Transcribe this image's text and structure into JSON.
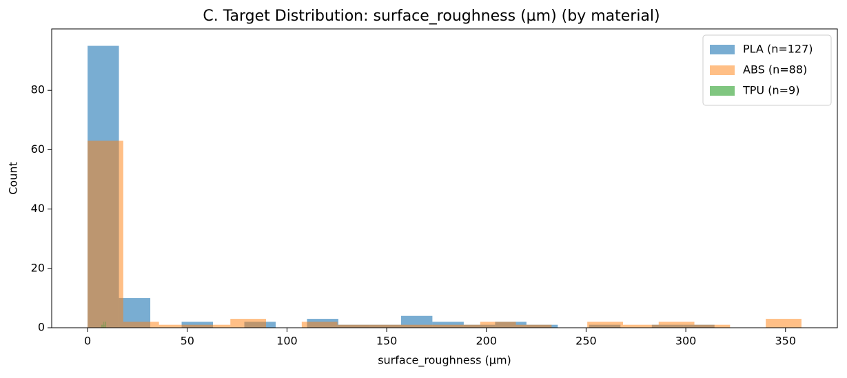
{
  "chart_data": {
    "type": "histogram",
    "title": "C.  Target Distribution: surface_roughness (µm) (by material)",
    "x_label": "surface_roughness (µm)",
    "y_label": "Count",
    "xlim": [
      -18,
      376
    ],
    "ylim": [
      0,
      100.7
    ],
    "xticks": [
      0,
      50,
      100,
      150,
      200,
      250,
      300,
      350
    ],
    "yticks": [
      0,
      20,
      40,
      60,
      80
    ],
    "legend": "upper right",
    "series": [
      {
        "name": "PLA (n=127)",
        "color": "#1f77b4",
        "bins": [
          0,
          15.72,
          31.44,
          47.16,
          62.88,
          78.6,
          94.32,
          110.04,
          125.76,
          141.48,
          157.2,
          172.92,
          188.64,
          204.36,
          220.08,
          235.8,
          251.52,
          267.24,
          282.96,
          298.68,
          314.4
        ],
        "values": [
          95,
          10,
          0,
          2,
          0,
          2,
          0,
          3,
          1,
          1,
          4,
          2,
          1,
          2,
          1,
          0,
          1,
          0,
          1,
          1
        ]
      },
      {
        "name": "ABS (n=88)",
        "color": "#ff7f0e",
        "bins": [
          0,
          17.9,
          35.8,
          53.7,
          71.6,
          89.5,
          107.4,
          125.3,
          143.2,
          161.1,
          179,
          196.9,
          214.8,
          232.7,
          250.6,
          268.5,
          286.4,
          304.3,
          322.2,
          340.1,
          358
        ],
        "values": [
          63,
          2,
          1,
          1,
          3,
          0,
          2,
          1,
          1,
          1,
          1,
          2,
          1,
          0,
          2,
          1,
          2,
          1,
          0,
          3
        ]
      },
      {
        "name": "TPU (n=9)",
        "color": "#2ca02c",
        "bins": [
          7,
          7.1,
          7.2,
          7.3,
          7.4,
          7.5,
          7.6,
          7.7,
          7.8,
          7.9,
          8,
          8.1,
          8.2,
          8.3,
          8.4,
          8.5,
          8.6,
          8.7,
          8.8,
          8.9,
          9
        ],
        "values": [
          1,
          0,
          0,
          0,
          1,
          0,
          0,
          0,
          0,
          2,
          0,
          0,
          1,
          0,
          0,
          0,
          2,
          0,
          0,
          2
        ]
      }
    ]
  }
}
